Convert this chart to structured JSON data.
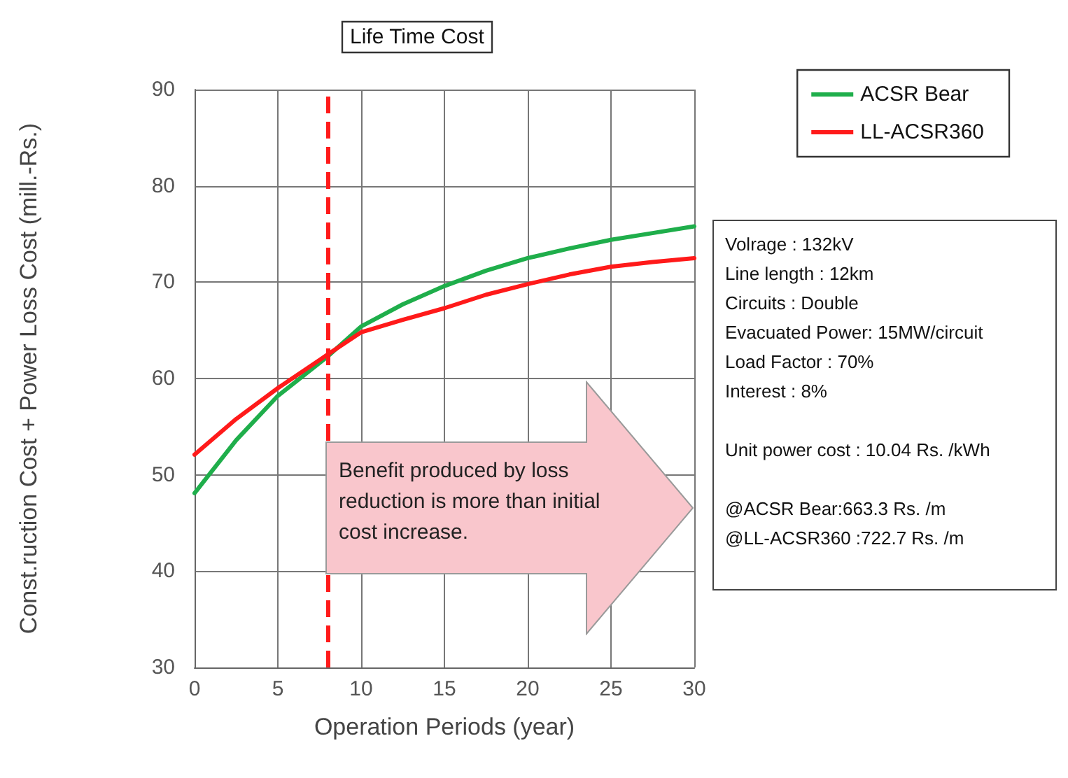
{
  "chart_data": {
    "type": "line",
    "title": "Life Time Cost",
    "xlabel": "Operation Periods (year)",
    "ylabel": "Const.ruction Cost + Power Loss Cost (mill.-Rs.)",
    "x": [
      0,
      2.5,
      5,
      8,
      10,
      12.5,
      15,
      17.5,
      20,
      22.5,
      25,
      27.5,
      30
    ],
    "series": [
      {
        "name": "ACSR Bear",
        "color": "#1fae4b",
        "values": [
          48.1,
          53.6,
          58.2,
          62.3,
          65.4,
          67.7,
          69.6,
          71.2,
          72.5,
          73.5,
          74.4,
          75.1,
          75.8
        ]
      },
      {
        "name": "LL-ACSR360",
        "color": "#ff1a1a",
        "values": [
          52.1,
          55.8,
          59.0,
          62.5,
          64.8,
          66.1,
          67.3,
          68.7,
          69.8,
          70.8,
          71.6,
          72.1,
          72.5
        ]
      }
    ],
    "xlim": [
      0,
      30
    ],
    "xticks": [
      0,
      5,
      10,
      15,
      20,
      25,
      30
    ],
    "ylim": [
      30,
      90
    ],
    "yticks": [
      30,
      40,
      50,
      60,
      70,
      80,
      90
    ],
    "ref_lines": [
      {
        "axis": "x",
        "value": 8,
        "color": "#ff1a1a",
        "line_style": "dashed"
      }
    ],
    "annotations": [
      "Benefit produced by loss reduction is  more than initial cost increase.",
      "Volrage : 132kV\nLine length : 12km\nCircuits : Double\nEvacuated Power: 15MW/circuit\nLoad Factor  : 70%\nInterest : 8%\n\nUnit power cost : 10.04 Rs. /kWh\n\n@ACSR Bear:663.3 Rs. /m\n@LL-ACSR360 :722.7 Rs. /m"
    ],
    "grid": true,
    "legend": "top right",
    "marker": "none",
    "line_style": "solid"
  }
}
